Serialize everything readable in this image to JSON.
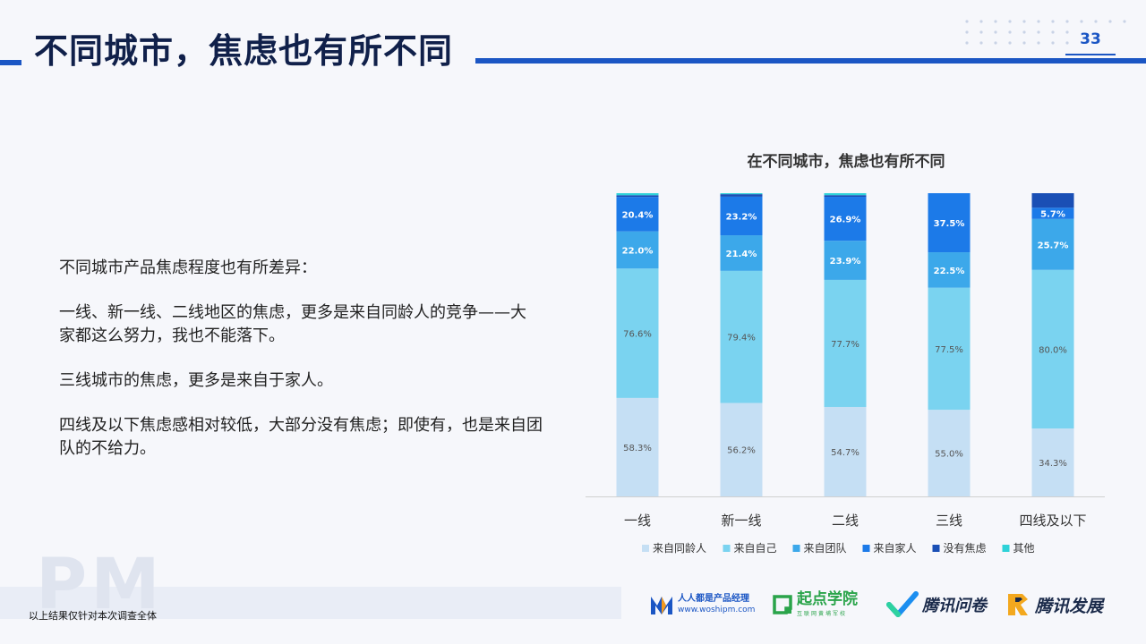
{
  "header": {
    "title": "不同城市，焦虑也有所不同",
    "page_number": "33"
  },
  "body_text": {
    "intro": "不同城市产品焦虑程度也有所差异：",
    "point1": "一线、新一线、二线地区的焦虑，更多是来自同龄人的竞争——大家都这么努力，我也不能落下。",
    "point2": "三线城市的焦虑，更多是来自于家人。",
    "point3": "四线及以下焦虑感相对较低，大部分没有焦虑；即使有，也是来自团队的不给力。"
  },
  "footer": {
    "watermark": "PM",
    "note": "以上结果仅针对本次调查全体",
    "logos": {
      "woshipm_name": "人人都是产品经理",
      "woshipm_url": "www.woshipm.com",
      "qidian_name": "起点学院",
      "qidian_sub": "互联网黄埔军校",
      "wenjuan_name": "腾讯问卷",
      "fazhan_name": "腾讯发展"
    }
  },
  "chart_data": {
    "type": "bar",
    "stacked": true,
    "title": "在不同城市，焦虑也有所不同",
    "categories": [
      "一线",
      "新一线",
      "二线",
      "三线",
      "四线及以下"
    ],
    "series": [
      {
        "name": "来自同龄人",
        "color": "#c5dff4",
        "values": [
          58.3,
          56.2,
          54.7,
          55.0,
          34.3
        ],
        "labels": [
          "58.3%",
          "56.2%",
          "54.7%",
          "55.0%",
          "34.3%"
        ],
        "label_color": "#555555"
      },
      {
        "name": "来自自己",
        "color": "#7ad3f0",
        "values": [
          76.6,
          79.4,
          77.7,
          77.5,
          80.0
        ],
        "labels": [
          "76.6%",
          "79.4%",
          "77.7%",
          "77.5%",
          "80.0%"
        ],
        "label_color": "#555555"
      },
      {
        "name": "来自团队",
        "color": "#3ca8ea",
        "values": [
          22.0,
          21.4,
          23.9,
          22.5,
          25.7
        ],
        "labels": [
          "22.0%",
          "21.4%",
          "23.9%",
          "22.5%",
          "25.7%"
        ],
        "label_color": "#ffffff"
      },
      {
        "name": "来自家人",
        "color": "#1c7ae8",
        "values": [
          20.4,
          23.2,
          26.9,
          37.5,
          5.7
        ],
        "labels": [
          "20.4%",
          "23.2%",
          "26.9%",
          "37.5%",
          "5.7%"
        ],
        "label_color": "#ffffff"
      },
      {
        "name": "没有焦虑",
        "color": "#1a4fb5",
        "values": [
          1.0,
          1.5,
          1.0,
          0,
          7.3
        ],
        "labels": [
          "",
          "",
          "",
          "",
          ""
        ],
        "label_color": "#ffffff"
      },
      {
        "name": "其他",
        "color": "#2ed2d8",
        "values": [
          1.2,
          0.6,
          1.2,
          0,
          0
        ],
        "labels": [
          "",
          "",
          "",
          "",
          ""
        ],
        "label_color": "#ffffff"
      }
    ],
    "legend_position": "bottom",
    "grid": false
  }
}
